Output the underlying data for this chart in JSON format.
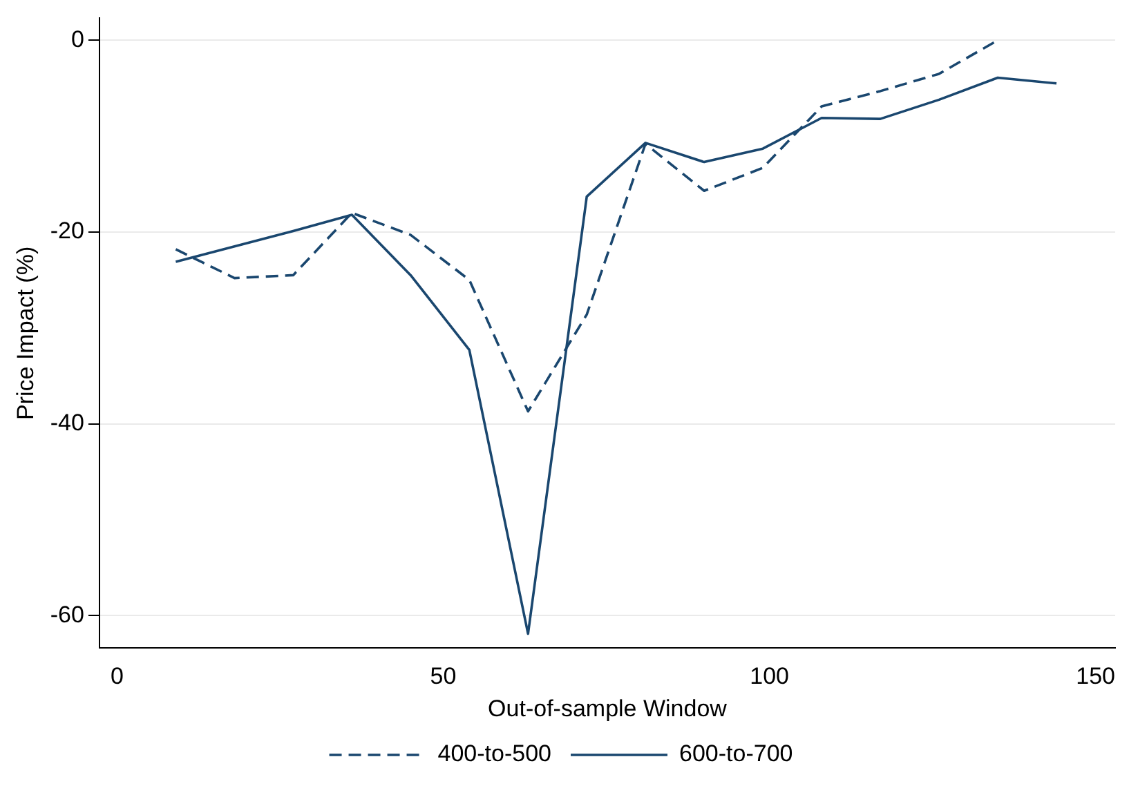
{
  "chart_data": {
    "type": "line",
    "xlabel": "Out-of-sample Window",
    "ylabel": "Price Impact (%)",
    "xlim": [
      -2.7,
      153
    ],
    "xticks": [
      0,
      50,
      100,
      150
    ],
    "ylim": [
      -63.4,
      2.3
    ],
    "yticks": [
      -60,
      -40,
      -20,
      0
    ],
    "grid": "y",
    "legend": "bottom",
    "marker": "none",
    "series": [
      {
        "name": "400-to-500",
        "color": "#1a476f",
        "line_style": "dashed",
        "x": [
          9,
          18,
          27,
          36,
          45,
          54,
          63,
          72,
          81,
          90,
          99,
          108,
          117,
          126,
          135
        ],
        "values": [
          -21.8,
          -24.8,
          -24.5,
          -18.0,
          -20.3,
          -25.0,
          -38.7,
          -28.6,
          -10.8,
          -15.7,
          -13.3,
          -6.9,
          -5.3,
          -3.5,
          0
        ]
      },
      {
        "name": "600-to-700",
        "color": "#1a476f",
        "line_style": "solid",
        "x": [
          9,
          27,
          36,
          45,
          54,
          63,
          72,
          81,
          90,
          99,
          108,
          117,
          126,
          135,
          144
        ],
        "values": [
          -23.1,
          -19.9,
          -18.2,
          -24.5,
          -32.3,
          -61.9,
          -16.3,
          -10.7,
          -12.7,
          -11.3,
          -8.1,
          -8.2,
          -6.2,
          -3.9,
          -4.5
        ]
      }
    ]
  }
}
